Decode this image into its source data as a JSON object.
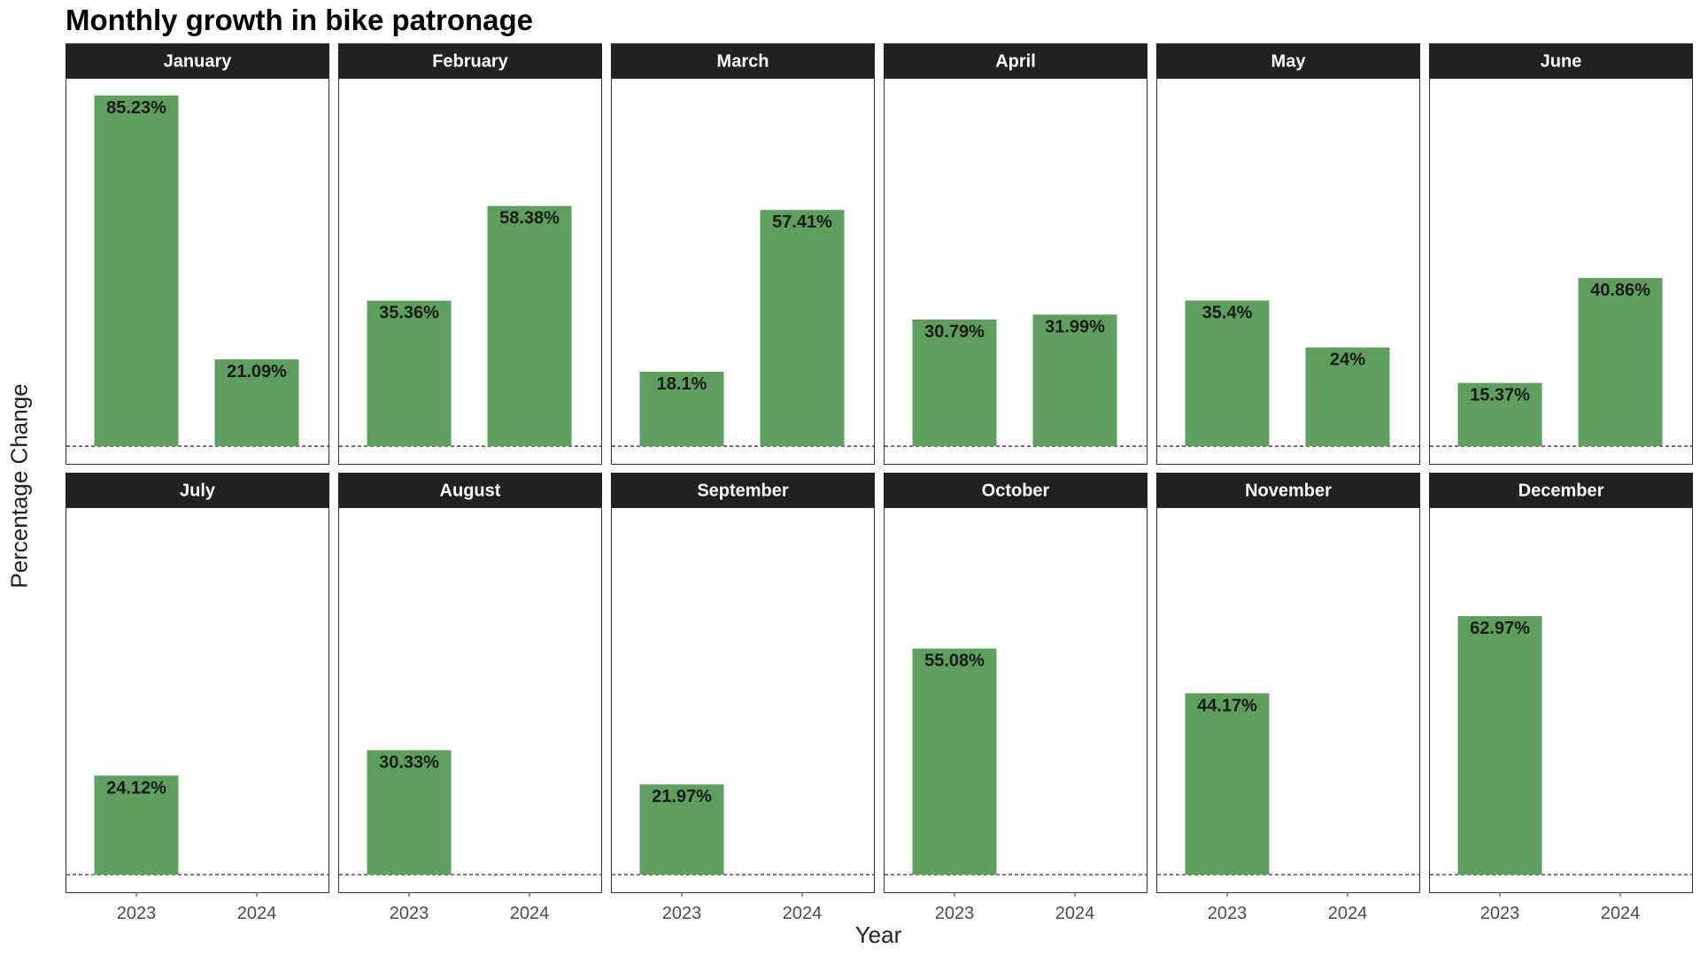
{
  "chart_data": {
    "type": "bar",
    "title": "Monthly growth in bike patronage",
    "xlabel": "Year",
    "ylabel": "Percentage Change",
    "categories": [
      "2023",
      "2024"
    ],
    "ylim": [
      -4.5,
      89.5
    ],
    "bar_color": "#5e9f5e",
    "strip_color": "#212124",
    "reference_line": 0,
    "facets": [
      {
        "month": "January",
        "values": [
          85.23,
          21.09
        ],
        "labels": [
          "85.23%",
          "21.09%"
        ]
      },
      {
        "month": "February",
        "values": [
          35.36,
          58.38
        ],
        "labels": [
          "35.36%",
          "58.38%"
        ]
      },
      {
        "month": "March",
        "values": [
          18.1,
          57.41
        ],
        "labels": [
          "18.1%",
          "57.41%"
        ]
      },
      {
        "month": "April",
        "values": [
          30.79,
          31.99
        ],
        "labels": [
          "30.79%",
          "31.99%"
        ]
      },
      {
        "month": "May",
        "values": [
          35.4,
          24
        ],
        "labels": [
          "35.4%",
          "24%"
        ]
      },
      {
        "month": "June",
        "values": [
          15.37,
          40.86
        ],
        "labels": [
          "15.37%",
          "40.86%"
        ]
      },
      {
        "month": "July",
        "values": [
          24.12,
          null
        ],
        "labels": [
          "24.12%",
          ""
        ]
      },
      {
        "month": "August",
        "values": [
          30.33,
          null
        ],
        "labels": [
          "30.33%",
          ""
        ]
      },
      {
        "month": "September",
        "values": [
          21.97,
          null
        ],
        "labels": [
          "21.97%",
          ""
        ]
      },
      {
        "month": "October",
        "values": [
          55.08,
          null
        ],
        "labels": [
          "55.08%",
          ""
        ]
      },
      {
        "month": "November",
        "values": [
          44.17,
          null
        ],
        "labels": [
          "44.17%",
          ""
        ]
      },
      {
        "month": "December",
        "values": [
          62.97,
          null
        ],
        "labels": [
          "62.97%",
          ""
        ]
      }
    ]
  }
}
